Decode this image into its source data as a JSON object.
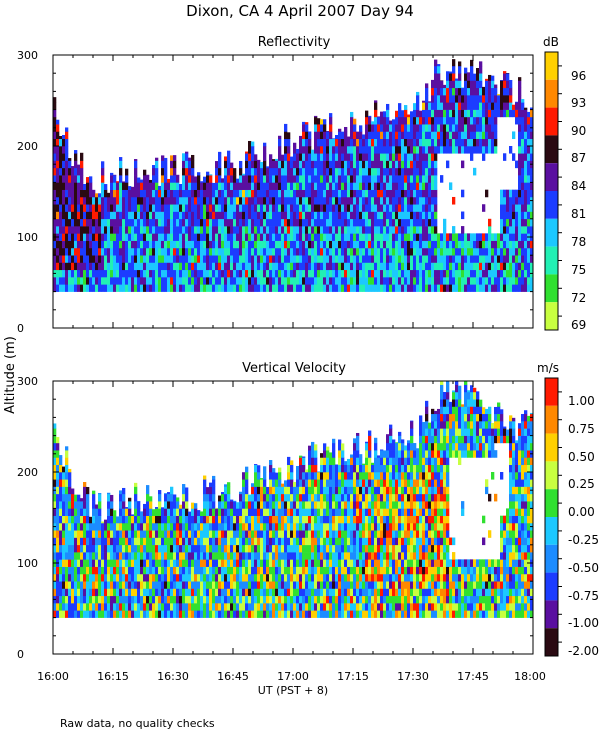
{
  "page_title": "Dixon, CA   4 April 2007   Day  94",
  "ylabel": "Altitude (m)",
  "xlabel": "UT  (PST + 8)",
  "footnote": "Raw data, no quality checks",
  "x_tick_labels": [
    "16:00",
    "16:15",
    "16:30",
    "16:45",
    "17:00",
    "17:15",
    "17:30",
    "17:45",
    "18:00"
  ],
  "chart_data": [
    {
      "type": "heatmap",
      "title": "Reflectivity",
      "unit": "dB",
      "xlim": [
        "16:00",
        "18:00"
      ],
      "ylim": [
        0,
        300
      ],
      "y_ticks": [
        "0",
        "100",
        "200",
        "300"
      ],
      "colorbar_labels": [
        "96",
        "93",
        "90",
        "87",
        "84",
        "81",
        "78",
        "75",
        "72",
        "69"
      ],
      "colorbar_colors": [
        "#ffd000",
        "#ff8800",
        "#ff1a00",
        "#2a0a12",
        "#5a0fa0",
        "#1c3cff",
        "#1cc8ff",
        "#22f0b4",
        "#30e030",
        "#c8ff40"
      ],
      "data_range": [
        69,
        97
      ],
      "coverage": [
        {
          "t": 0,
          "top": 250
        },
        {
          "t": 5,
          "top": 195
        },
        {
          "t": 10,
          "top": 160
        },
        {
          "t": 20,
          "top": 175
        },
        {
          "t": 35,
          "top": 175
        },
        {
          "t": 45,
          "top": 180
        },
        {
          "t": 55,
          "top": 200
        },
        {
          "t": 65,
          "top": 215
        },
        {
          "t": 75,
          "top": 225
        },
        {
          "t": 85,
          "top": 235
        },
        {
          "t": 92,
          "top": 245
        },
        {
          "t": 96,
          "top": 280
        },
        {
          "t": 100,
          "top": 285
        },
        {
          "t": 110,
          "top": 275
        },
        {
          "t": 120,
          "top": 255
        }
      ],
      "gaps": [
        {
          "t0": 96,
          "t1": 112,
          "y0": 100,
          "y1": 190
        },
        {
          "t0": 111,
          "t1": 116,
          "y0": 150,
          "y1": 225
        }
      ]
    },
    {
      "type": "heatmap",
      "title": "Vertical Velocity",
      "unit": "m/s",
      "xlim": [
        "16:00",
        "18:00"
      ],
      "ylim": [
        0,
        300
      ],
      "y_ticks": [
        "0",
        "100",
        "200",
        "300"
      ],
      "colorbar_labels": [
        "1.00",
        "0.75",
        "0.50",
        "0.25",
        "0.00",
        "-0.25",
        "-0.50",
        "-0.75",
        "-1.00",
        "-2.00"
      ],
      "colorbar_colors": [
        "#ff1a00",
        "#ff8800",
        "#ffd000",
        "#c8ff40",
        "#30e030",
        "#1cc8ff",
        "#1c8cff",
        "#1c3cff",
        "#5a0fa0",
        "#2a0a12"
      ],
      "data_range": [
        -2.0,
        1.2
      ],
      "coverage": [
        {
          "t": 0,
          "top": 250
        },
        {
          "t": 5,
          "top": 195
        },
        {
          "t": 10,
          "top": 160
        },
        {
          "t": 20,
          "top": 170
        },
        {
          "t": 35,
          "top": 175
        },
        {
          "t": 45,
          "top": 180
        },
        {
          "t": 55,
          "top": 200
        },
        {
          "t": 65,
          "top": 215
        },
        {
          "t": 75,
          "top": 225
        },
        {
          "t": 85,
          "top": 235
        },
        {
          "t": 92,
          "top": 245
        },
        {
          "t": 96,
          "top": 285
        },
        {
          "t": 100,
          "top": 290
        },
        {
          "t": 110,
          "top": 260
        },
        {
          "t": 120,
          "top": 250
        }
      ],
      "gaps": [
        {
          "t0": 99,
          "t1": 112,
          "y0": 100,
          "y1": 210
        },
        {
          "t0": 110,
          "t1": 114,
          "y0": 150,
          "y1": 230
        }
      ]
    }
  ]
}
